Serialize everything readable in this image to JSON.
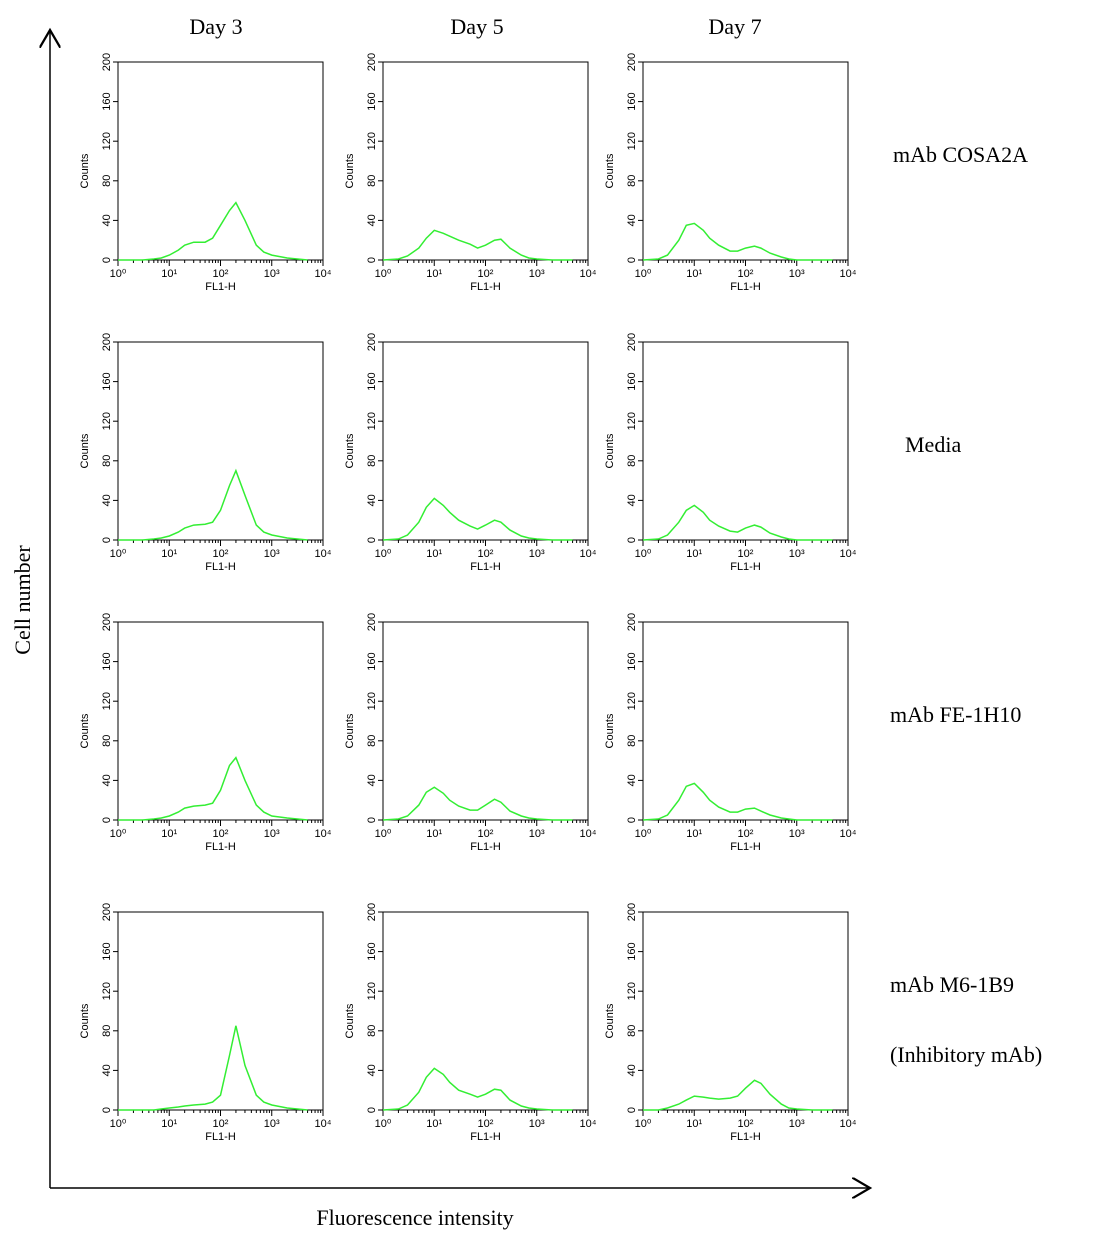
{
  "figure": {
    "columns": [
      "Day 3",
      "Day 5",
      "Day 7"
    ],
    "rows": [
      "mAb COSA2A",
      "Media",
      "mAb FE-1H10",
      "mAb M6-1B9"
    ],
    "row_note": "(Inhibitory mAb)",
    "y_axis_label": "Cell number",
    "x_axis_label": "Fluorescence intensity"
  },
  "chart_data": [
    {
      "type": "line",
      "x_label": "FL1-H",
      "y_label": "Counts",
      "x_scale": "log",
      "color": "#33ee33",
      "xlim": [
        1,
        10000
      ],
      "xticks": [
        {
          "value": 1,
          "label": "10⁰"
        },
        {
          "value": 10,
          "label": "10¹"
        },
        {
          "value": 100,
          "label": "10²"
        },
        {
          "value": 1000,
          "label": "10³"
        },
        {
          "value": 10000,
          "label": "10⁴"
        }
      ],
      "ylim": [
        0,
        200
      ],
      "yticks": [
        0,
        40,
        80,
        120,
        160,
        200
      ],
      "x": [
        1,
        2,
        3,
        5,
        7,
        10,
        15,
        20,
        30,
        50,
        70,
        100,
        150,
        200,
        300,
        500,
        700,
        1000,
        2000,
        5000
      ],
      "values": [
        0,
        0,
        0,
        1,
        2,
        5,
        10,
        15,
        18,
        18,
        22,
        35,
        50,
        58,
        40,
        15,
        8,
        5,
        2,
        0
      ]
    },
    {
      "type": "line",
      "x_label": "FL1-H",
      "y_label": "Counts",
      "x_scale": "log",
      "color": "#33ee33",
      "xlim": [
        1,
        10000
      ],
      "xticks": [
        {
          "value": 1,
          "label": "10⁰"
        },
        {
          "value": 10,
          "label": "10¹"
        },
        {
          "value": 100,
          "label": "10²"
        },
        {
          "value": 1000,
          "label": "10³"
        },
        {
          "value": 10000,
          "label": "10⁴"
        }
      ],
      "ylim": [
        0,
        200
      ],
      "yticks": [
        0,
        40,
        80,
        120,
        160,
        200
      ],
      "x": [
        1,
        2,
        3,
        5,
        7,
        10,
        15,
        20,
        30,
        50,
        70,
        100,
        150,
        200,
        300,
        500,
        700,
        1000,
        2000,
        5000
      ],
      "values": [
        0,
        1,
        4,
        12,
        22,
        30,
        27,
        24,
        20,
        16,
        12,
        15,
        20,
        21,
        12,
        5,
        2,
        1,
        0,
        0
      ]
    },
    {
      "type": "line",
      "x_label": "FL1-H",
      "y_label": "Counts",
      "x_scale": "log",
      "color": "#33ee33",
      "xlim": [
        1,
        10000
      ],
      "xticks": [
        {
          "value": 1,
          "label": "10⁰"
        },
        {
          "value": 10,
          "label": "10¹"
        },
        {
          "value": 100,
          "label": "10²"
        },
        {
          "value": 1000,
          "label": "10³"
        },
        {
          "value": 10000,
          "label": "10⁴"
        }
      ],
      "ylim": [
        0,
        200
      ],
      "yticks": [
        0,
        40,
        80,
        120,
        160,
        200
      ],
      "x": [
        1,
        2,
        3,
        5,
        7,
        10,
        15,
        20,
        30,
        50,
        70,
        100,
        150,
        200,
        300,
        500,
        700,
        1000,
        2000,
        5000
      ],
      "values": [
        0,
        1,
        5,
        20,
        35,
        37,
        30,
        22,
        15,
        9,
        9,
        12,
        14,
        12,
        7,
        3,
        1,
        0,
        0,
        0
      ]
    },
    {
      "type": "line",
      "x_label": "FL1-H",
      "y_label": "Counts",
      "x_scale": "log",
      "color": "#33ee33",
      "xlim": [
        1,
        10000
      ],
      "xticks": [
        {
          "value": 1,
          "label": "10⁰"
        },
        {
          "value": 10,
          "label": "10¹"
        },
        {
          "value": 100,
          "label": "10²"
        },
        {
          "value": 1000,
          "label": "10³"
        },
        {
          "value": 10000,
          "label": "10⁴"
        }
      ],
      "ylim": [
        0,
        200
      ],
      "yticks": [
        0,
        40,
        80,
        120,
        160,
        200
      ],
      "x": [
        1,
        2,
        3,
        5,
        7,
        10,
        15,
        20,
        30,
        50,
        70,
        100,
        150,
        200,
        300,
        500,
        700,
        1000,
        2000,
        5000
      ],
      "values": [
        0,
        0,
        0,
        1,
        2,
        4,
        8,
        12,
        15,
        16,
        18,
        30,
        55,
        70,
        45,
        15,
        8,
        5,
        2,
        0
      ]
    },
    {
      "type": "line",
      "x_label": "FL1-H",
      "y_label": "Counts",
      "x_scale": "log",
      "color": "#33ee33",
      "xlim": [
        1,
        10000
      ],
      "xticks": [
        {
          "value": 1,
          "label": "10⁰"
        },
        {
          "value": 10,
          "label": "10¹"
        },
        {
          "value": 100,
          "label": "10²"
        },
        {
          "value": 1000,
          "label": "10³"
        },
        {
          "value": 10000,
          "label": "10⁴"
        }
      ],
      "ylim": [
        0,
        200
      ],
      "yticks": [
        0,
        40,
        80,
        120,
        160,
        200
      ],
      "x": [
        1,
        2,
        3,
        5,
        7,
        10,
        15,
        20,
        30,
        50,
        70,
        100,
        150,
        200,
        300,
        500,
        700,
        1000,
        2000,
        5000
      ],
      "values": [
        0,
        1,
        5,
        18,
        33,
        42,
        35,
        28,
        20,
        14,
        11,
        15,
        20,
        18,
        10,
        4,
        2,
        1,
        0,
        0
      ]
    },
    {
      "type": "line",
      "x_label": "FL1-H",
      "y_label": "Counts",
      "x_scale": "log",
      "color": "#33ee33",
      "xlim": [
        1,
        10000
      ],
      "xticks": [
        {
          "value": 1,
          "label": "10⁰"
        },
        {
          "value": 10,
          "label": "10¹"
        },
        {
          "value": 100,
          "label": "10²"
        },
        {
          "value": 1000,
          "label": "10³"
        },
        {
          "value": 10000,
          "label": "10⁴"
        }
      ],
      "ylim": [
        0,
        200
      ],
      "yticks": [
        0,
        40,
        80,
        120,
        160,
        200
      ],
      "x": [
        1,
        2,
        3,
        5,
        7,
        10,
        15,
        20,
        30,
        50,
        70,
        100,
        150,
        200,
        300,
        500,
        700,
        1000,
        2000,
        5000
      ],
      "values": [
        0,
        1,
        5,
        18,
        30,
        35,
        28,
        20,
        14,
        9,
        8,
        12,
        15,
        13,
        7,
        3,
        1,
        0,
        0,
        0
      ]
    },
    {
      "type": "line",
      "x_label": "FL1-H",
      "y_label": "Counts",
      "x_scale": "log",
      "color": "#33ee33",
      "xlim": [
        1,
        10000
      ],
      "xticks": [
        {
          "value": 1,
          "label": "10⁰"
        },
        {
          "value": 10,
          "label": "10¹"
        },
        {
          "value": 100,
          "label": "10²"
        },
        {
          "value": 1000,
          "label": "10³"
        },
        {
          "value": 10000,
          "label": "10⁴"
        }
      ],
      "ylim": [
        0,
        200
      ],
      "yticks": [
        0,
        40,
        80,
        120,
        160,
        200
      ],
      "x": [
        1,
        2,
        3,
        5,
        7,
        10,
        15,
        20,
        30,
        50,
        70,
        100,
        150,
        200,
        300,
        500,
        700,
        1000,
        2000,
        5000
      ],
      "values": [
        0,
        0,
        0,
        1,
        2,
        4,
        8,
        12,
        14,
        15,
        17,
        30,
        55,
        63,
        40,
        15,
        8,
        4,
        2,
        0
      ]
    },
    {
      "type": "line",
      "x_label": "FL1-H",
      "y_label": "Counts",
      "x_scale": "log",
      "color": "#33ee33",
      "xlim": [
        1,
        10000
      ],
      "xticks": [
        {
          "value": 1,
          "label": "10⁰"
        },
        {
          "value": 10,
          "label": "10¹"
        },
        {
          "value": 100,
          "label": "10²"
        },
        {
          "value": 1000,
          "label": "10³"
        },
        {
          "value": 10000,
          "label": "10⁴"
        }
      ],
      "ylim": [
        0,
        200
      ],
      "yticks": [
        0,
        40,
        80,
        120,
        160,
        200
      ],
      "x": [
        1,
        2,
        3,
        5,
        7,
        10,
        15,
        20,
        30,
        50,
        70,
        100,
        150,
        200,
        300,
        500,
        700,
        1000,
        2000,
        5000
      ],
      "values": [
        0,
        1,
        4,
        15,
        28,
        33,
        27,
        20,
        14,
        10,
        10,
        15,
        21,
        18,
        9,
        4,
        2,
        1,
        0,
        0
      ]
    },
    {
      "type": "line",
      "x_label": "FL1-H",
      "y_label": "Counts",
      "x_scale": "log",
      "color": "#33ee33",
      "xlim": [
        1,
        10000
      ],
      "xticks": [
        {
          "value": 1,
          "label": "10⁰"
        },
        {
          "value": 10,
          "label": "10¹"
        },
        {
          "value": 100,
          "label": "10²"
        },
        {
          "value": 1000,
          "label": "10³"
        },
        {
          "value": 10000,
          "label": "10⁴"
        }
      ],
      "ylim": [
        0,
        200
      ],
      "yticks": [
        0,
        40,
        80,
        120,
        160,
        200
      ],
      "x": [
        1,
        2,
        3,
        5,
        7,
        10,
        15,
        20,
        30,
        50,
        70,
        100,
        150,
        200,
        300,
        500,
        700,
        1000,
        2000,
        5000
      ],
      "values": [
        0,
        1,
        5,
        20,
        34,
        37,
        28,
        20,
        13,
        8,
        8,
        11,
        12,
        9,
        5,
        2,
        1,
        0,
        0,
        0
      ]
    },
    {
      "type": "line",
      "x_label": "FL1-H",
      "y_label": "Counts",
      "x_scale": "log",
      "color": "#33ee33",
      "xlim": [
        1,
        10000
      ],
      "xticks": [
        {
          "value": 1,
          "label": "10⁰"
        },
        {
          "value": 10,
          "label": "10¹"
        },
        {
          "value": 100,
          "label": "10²"
        },
        {
          "value": 1000,
          "label": "10³"
        },
        {
          "value": 10000,
          "label": "10⁴"
        }
      ],
      "ylim": [
        0,
        200
      ],
      "yticks": [
        0,
        40,
        80,
        120,
        160,
        200
      ],
      "x": [
        1,
        2,
        3,
        5,
        7,
        10,
        15,
        20,
        30,
        50,
        70,
        100,
        150,
        200,
        300,
        500,
        700,
        1000,
        2000,
        5000
      ],
      "values": [
        0,
        0,
        0,
        0,
        1,
        2,
        3,
        4,
        5,
        6,
        8,
        15,
        55,
        85,
        45,
        15,
        8,
        5,
        2,
        0
      ]
    },
    {
      "type": "line",
      "x_label": "FL1-H",
      "y_label": "Counts",
      "x_scale": "log",
      "color": "#33ee33",
      "xlim": [
        1,
        10000
      ],
      "xticks": [
        {
          "value": 1,
          "label": "10⁰"
        },
        {
          "value": 10,
          "label": "10¹"
        },
        {
          "value": 100,
          "label": "10²"
        },
        {
          "value": 1000,
          "label": "10³"
        },
        {
          "value": 10000,
          "label": "10⁴"
        }
      ],
      "ylim": [
        0,
        200
      ],
      "yticks": [
        0,
        40,
        80,
        120,
        160,
        200
      ],
      "x": [
        1,
        2,
        3,
        5,
        7,
        10,
        15,
        20,
        30,
        50,
        70,
        100,
        150,
        200,
        300,
        500,
        700,
        1000,
        2000,
        5000
      ],
      "values": [
        0,
        1,
        5,
        18,
        33,
        42,
        36,
        28,
        20,
        16,
        13,
        16,
        21,
        20,
        10,
        4,
        2,
        1,
        0,
        0
      ]
    },
    {
      "type": "line",
      "x_label": "FL1-H",
      "y_label": "Counts",
      "x_scale": "log",
      "color": "#33ee33",
      "xlim": [
        1,
        10000
      ],
      "xticks": [
        {
          "value": 1,
          "label": "10⁰"
        },
        {
          "value": 10,
          "label": "10¹"
        },
        {
          "value": 100,
          "label": "10²"
        },
        {
          "value": 1000,
          "label": "10³"
        },
        {
          "value": 10000,
          "label": "10⁴"
        }
      ],
      "ylim": [
        0,
        200
      ],
      "yticks": [
        0,
        40,
        80,
        120,
        160,
        200
      ],
      "x": [
        1,
        2,
        3,
        5,
        7,
        10,
        15,
        20,
        30,
        50,
        70,
        100,
        150,
        200,
        300,
        500,
        700,
        1000,
        2000,
        5000
      ],
      "values": [
        0,
        0,
        2,
        6,
        10,
        14,
        13,
        12,
        11,
        12,
        14,
        22,
        30,
        27,
        16,
        6,
        2,
        1,
        0,
        0
      ]
    }
  ]
}
